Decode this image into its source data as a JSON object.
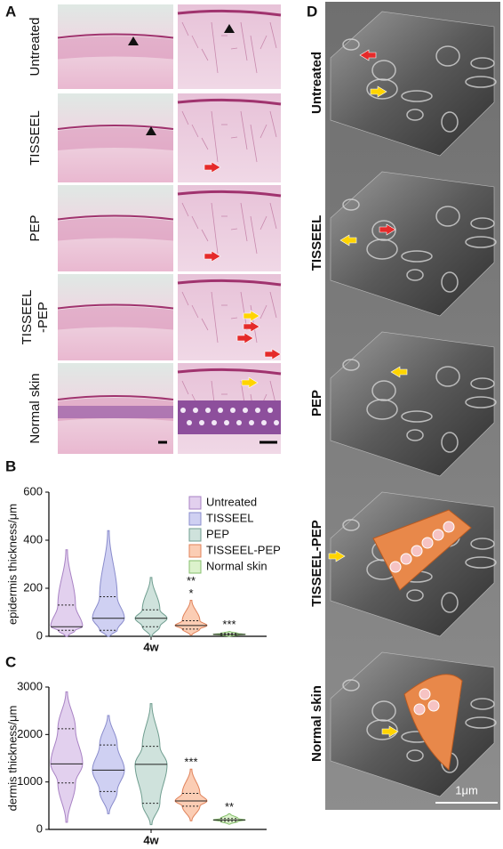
{
  "panel_a": {
    "label": "A",
    "rows": [
      {
        "label": [
          "Untreated"
        ]
      },
      {
        "label": [
          "TISSEEL"
        ]
      },
      {
        "label": [
          "PEP"
        ]
      },
      {
        "label": [
          "TISSEEL",
          "-PEP"
        ]
      },
      {
        "label": [
          "Normal skin"
        ]
      }
    ]
  },
  "chart_data": [
    {
      "type": "violin",
      "panel": "B",
      "ylabel": "epidermis thickness/μm",
      "categories": [
        "4w"
      ],
      "ylim": [
        0,
        600
      ],
      "yticks": [
        0,
        200,
        400,
        600
      ],
      "series": [
        {
          "name": "Untreated",
          "color": "#e2d0ee",
          "edgecolor": "#a882c4",
          "min": 0,
          "q1": 25,
          "median": 40,
          "q3": 130,
          "max": 360
        },
        {
          "name": "TISSEEL",
          "color": "#cfd0f2",
          "edgecolor": "#8a8ccc",
          "min": 0,
          "q1": 25,
          "median": 75,
          "q3": 165,
          "max": 440
        },
        {
          "name": "PEP",
          "color": "#cfe2dc",
          "edgecolor": "#6f9d8f",
          "min": 0,
          "q1": 40,
          "median": 75,
          "q3": 110,
          "max": 245
        },
        {
          "name": "TISSEEL-PEP",
          "color": "#fbcdb4",
          "edgecolor": "#e0825a",
          "min": 5,
          "q1": 30,
          "median": 45,
          "q3": 65,
          "max": 150,
          "annotations": [
            "**",
            "*"
          ]
        },
        {
          "name": "Normal skin",
          "color": "#dcf2cc",
          "edgecolor": "#86bf6c",
          "min": 0,
          "q1": 5,
          "median": 8,
          "q3": 12,
          "max": 20,
          "annotations": [
            "***"
          ]
        }
      ]
    },
    {
      "type": "violin",
      "panel": "C",
      "ylabel": "dermis thickness/μm",
      "categories": [
        "4w"
      ],
      "ylim": [
        0,
        3000
      ],
      "yticks": [
        0,
        1000,
        2000,
        3000
      ],
      "series": [
        {
          "color": "#e2d0ee",
          "edgecolor": "#a882c4",
          "min": 150,
          "q1": 980,
          "median": 1380,
          "q3": 2120,
          "max": 2900
        },
        {
          "color": "#cfd0f2",
          "edgecolor": "#8a8ccc",
          "min": 330,
          "q1": 800,
          "median": 1250,
          "q3": 1780,
          "max": 2400
        },
        {
          "color": "#cfe2dc",
          "edgecolor": "#6f9d8f",
          "min": 100,
          "q1": 550,
          "median": 1370,
          "q3": 1750,
          "max": 2650
        },
        {
          "color": "#fbcdb4",
          "edgecolor": "#e0825a",
          "min": 180,
          "q1": 490,
          "median": 600,
          "q3": 760,
          "max": 1270,
          "annotations": [
            "***"
          ]
        },
        {
          "color": "#dcf2cc",
          "edgecolor": "#86bf6c",
          "min": 110,
          "q1": 170,
          "median": 200,
          "q3": 230,
          "max": 330,
          "annotations": [
            "**"
          ]
        }
      ]
    }
  ],
  "panel_d": {
    "label": "D",
    "rows": [
      {
        "label": "Untreated"
      },
      {
        "label": "TISSEEL"
      },
      {
        "label": "PEP"
      },
      {
        "label": "TISSEEL-PEP"
      },
      {
        "label": "Normal skin"
      }
    ],
    "scale_label": "1μm"
  }
}
